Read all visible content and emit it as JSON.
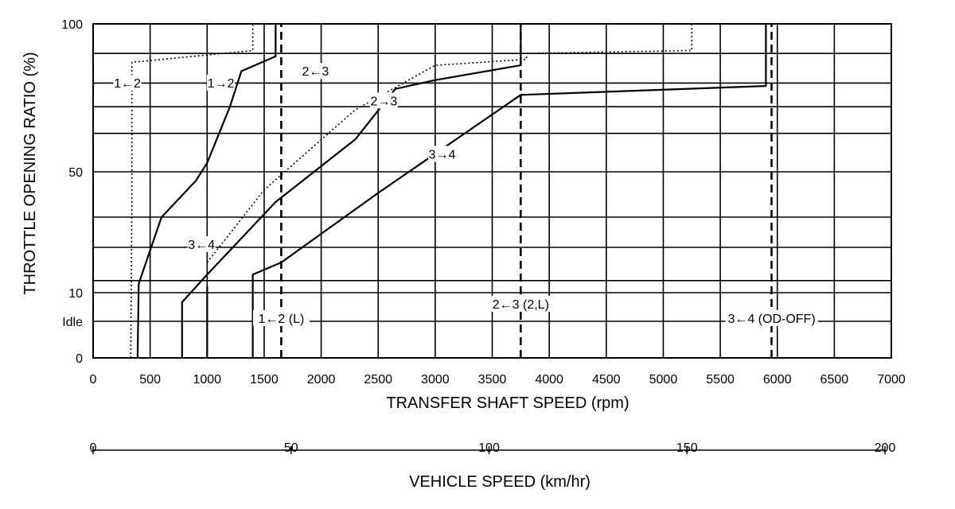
{
  "chart_data": {
    "type": "line",
    "title": "",
    "xlabel": "TRANSFER SHAFT SPEED (rpm)",
    "ylabel": "THROTTLE OPENING RATIO (%)",
    "x2label": "VEHICLE SPEED (km/hr)",
    "xlim": [
      0,
      7000
    ],
    "x_ticks": [
      0,
      500,
      1000,
      1500,
      2000,
      2500,
      3000,
      3500,
      4000,
      4500,
      5000,
      5500,
      6000,
      6500,
      7000
    ],
    "x2lim": [
      0,
      200
    ],
    "x2_ticks": [
      0,
      50,
      100,
      150,
      200
    ],
    "y_ticks": [
      {
        "label": "0",
        "value": 0
      },
      {
        "label": "Idle",
        "value": 4
      },
      {
        "label": "10",
        "value": 10
      },
      {
        "label": "50",
        "value": 50
      },
      {
        "label": "100",
        "value": 100
      }
    ],
    "y_scale_note": "non-linear throttle scale; 0, Idle, 10, 50, 100 labelled",
    "grid": true,
    "series": [
      {
        "name": "1←2",
        "style": "dotted",
        "points": [
          [
            330,
            0
          ],
          [
            340,
            40
          ],
          [
            340,
            87
          ],
          [
            1400,
            91
          ],
          [
            1400,
            100
          ]
        ]
      },
      {
        "name": "1→2",
        "style": "solid",
        "points": [
          [
            390,
            0
          ],
          [
            400,
            13
          ],
          [
            600,
            35
          ],
          [
            900,
            47
          ],
          [
            1000,
            53
          ],
          [
            1200,
            72
          ],
          [
            1300,
            84
          ],
          [
            1600,
            89
          ],
          [
            1600,
            100
          ]
        ]
      },
      {
        "name": "2←3",
        "style": "dotted",
        "points": [
          [
            1000,
            0
          ],
          [
            1000,
            20
          ],
          [
            1500,
            44
          ],
          [
            2300,
            71
          ],
          [
            3000,
            86
          ],
          [
            3800,
            88
          ],
          [
            3800,
            90
          ],
          [
            5250,
            91
          ],
          [
            5250,
            100
          ]
        ]
      },
      {
        "name": "2→3",
        "style": "solid",
        "points": [
          [
            780,
            0
          ],
          [
            780,
            8
          ],
          [
            1000,
            16
          ],
          [
            1600,
            40
          ],
          [
            2300,
            61
          ],
          [
            2650,
            78
          ],
          [
            3000,
            81
          ],
          [
            3750,
            86
          ],
          [
            3750,
            100
          ]
        ]
      },
      {
        "name": "3→4",
        "style": "solid",
        "points": [
          [
            1400,
            0
          ],
          [
            1400,
            16
          ],
          [
            1650,
            20
          ],
          [
            2500,
            43
          ],
          [
            3750,
            76
          ],
          [
            5900,
            79
          ],
          [
            5900,
            100
          ]
        ]
      },
      {
        "name": "3←4",
        "style": "solid",
        "points": [
          [
            1000,
            0
          ],
          [
            1000,
            12
          ]
        ]
      },
      {
        "name": "1←2 (L)",
        "style": "dashed",
        "points": [
          [
            1650,
            0
          ],
          [
            1650,
            100
          ]
        ]
      },
      {
        "name": "2←3 (2,L)",
        "style": "dashed",
        "points": [
          [
            3750,
            0
          ],
          [
            3750,
            100
          ]
        ]
      },
      {
        "name": "3←4 (OD-OFF)",
        "style": "dashed",
        "points": [
          [
            5950,
            0
          ],
          [
            5950,
            100
          ]
        ]
      }
    ],
    "annotations": [
      {
        "text": "1←2",
        "x": 300,
        "y": 79
      },
      {
        "text": "1→2",
        "x": 1120,
        "y": 79
      },
      {
        "text": "2←3",
        "x": 1950,
        "y": 83
      },
      {
        "text": "2→3",
        "x": 2550,
        "y": 73
      },
      {
        "text": "3→4",
        "x": 3060,
        "y": 55
      },
      {
        "text": "3←4",
        "x": 950,
        "y": 25
      },
      {
        "text": "1←2 (L)",
        "x": 1650,
        "y": 4
      },
      {
        "text": "2←3 (2,L)",
        "x": 3750,
        "y": 7
      },
      {
        "text": "3←4 (OD-OFF)",
        "x": 5950,
        "y": 4
      }
    ]
  }
}
